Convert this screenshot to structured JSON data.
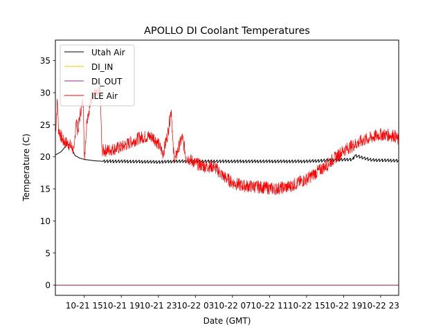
{
  "chart_data": {
    "type": "line",
    "title": "APOLLO DI Coolant Temperatures",
    "xlabel": "Date (GMT)",
    "ylabel": "Temperature (C)",
    "x_unit": "hours since 10-21 00:00 GMT",
    "xlim": [
      11.88,
      48.95
    ],
    "ylim": [
      -1.6,
      38.2
    ],
    "yticks": [
      0,
      5,
      10,
      15,
      20,
      25,
      30,
      35
    ],
    "xticks": [
      {
        "value": 15,
        "label": "10-21 15"
      },
      {
        "value": 19,
        "label": "10-21 19"
      },
      {
        "value": 23,
        "label": "10-21 23"
      },
      {
        "value": 27,
        "label": "10-22 03"
      },
      {
        "value": 31,
        "label": "10-22 07"
      },
      {
        "value": 35,
        "label": "10-22 11"
      },
      {
        "value": 39,
        "label": "10-22 15"
      },
      {
        "value": 43,
        "label": "10-22 19"
      },
      {
        "value": 47,
        "label": "10-22 23"
      }
    ],
    "grid": false,
    "legend_position": "top-left",
    "series": [
      {
        "name": "Utah Air",
        "color": "#000000",
        "noise": 0.25,
        "x": [
          11.9,
          12.5,
          13.2,
          13.5,
          14.0,
          14.5,
          15.0,
          16.0,
          17.0,
          19.0,
          23.0,
          25.0,
          27.0,
          31.0,
          35.0,
          39.0,
          42.0,
          44.0,
          44.2,
          46.0,
          48.95
        ],
        "y": [
          20.3,
          20.8,
          22.0,
          21.8,
          20.2,
          19.8,
          19.6,
          19.4,
          19.3,
          19.3,
          19.2,
          19.3,
          19.3,
          19.3,
          19.3,
          19.3,
          19.5,
          19.6,
          20.2,
          19.5,
          19.4
        ]
      },
      {
        "name": "DI_IN",
        "color": "#ffbf00",
        "noise": 0,
        "x": [
          11.9,
          48.95
        ],
        "y": [
          0,
          0
        ]
      },
      {
        "name": "DI_OUT",
        "color": "#8b2c8b",
        "noise": 0,
        "x": [
          11.9,
          48.95
        ],
        "y": [
          0,
          0
        ]
      },
      {
        "name": "ILE Air",
        "color": "#ff0000",
        "noise": 1.0,
        "x": [
          11.9,
          12.1,
          12.2,
          12.4,
          12.7,
          13.3,
          13.7,
          13.9,
          14.1,
          14.3,
          14.6,
          14.9,
          15.0,
          15.3,
          15.7,
          15.9,
          16.5,
          16.7,
          16.9,
          17.5,
          19.0,
          21.0,
          22.0,
          22.5,
          23.0,
          23.5,
          24.0,
          24.4,
          24.6,
          24.8,
          25.3,
          25.6,
          26.0,
          27.0,
          28.0,
          29.0,
          30.0,
          31.0,
          32.0,
          34.0,
          35.5,
          37.0,
          39.0,
          41.0,
          43.0,
          45.0,
          47.0,
          48.5,
          48.95
        ],
        "y": [
          24.0,
          29.0,
          24.5,
          23.5,
          22.5,
          22.0,
          21.5,
          20.5,
          26.0,
          24.0,
          27.0,
          29.0,
          19.5,
          26.0,
          28.5,
          30.0,
          29.5,
          30.8,
          21.0,
          21.0,
          21.5,
          23.0,
          23.2,
          23.0,
          22.0,
          20.5,
          23.5,
          27.5,
          21.0,
          19.5,
          22.0,
          23.0,
          20.0,
          19.0,
          18.5,
          18.5,
          17.0,
          16.0,
          15.5,
          15.3,
          15.0,
          15.3,
          16.5,
          18.5,
          21.0,
          22.5,
          23.5,
          23.3,
          22.5
        ]
      }
    ]
  }
}
